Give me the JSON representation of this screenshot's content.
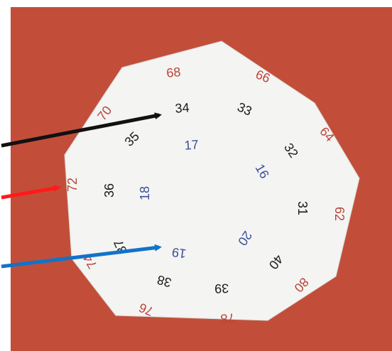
{
  "photo": {
    "background_color": "#c9523e",
    "card_color": "#f4f4f2"
  },
  "outer_numbers": [
    "68",
    "66",
    "64",
    "62",
    "80",
    "78",
    "76",
    "74",
    "72",
    "70"
  ],
  "middle_numbers": [
    "34",
    "33",
    "32",
    "31",
    "40",
    "39",
    "38",
    "37",
    "36",
    "35"
  ],
  "inner_numbers": [
    "17",
    "16",
    "20",
    "19",
    "18"
  ],
  "arrows": [
    {
      "color": "#111111",
      "target": "34"
    },
    {
      "color": "#ff1a1a",
      "target": "72"
    },
    {
      "color": "#1173c9",
      "target": "19"
    }
  ],
  "colors": {
    "outer": "#b8443a",
    "middle": "#1a1a1a",
    "inner": "#3a4f9a"
  }
}
